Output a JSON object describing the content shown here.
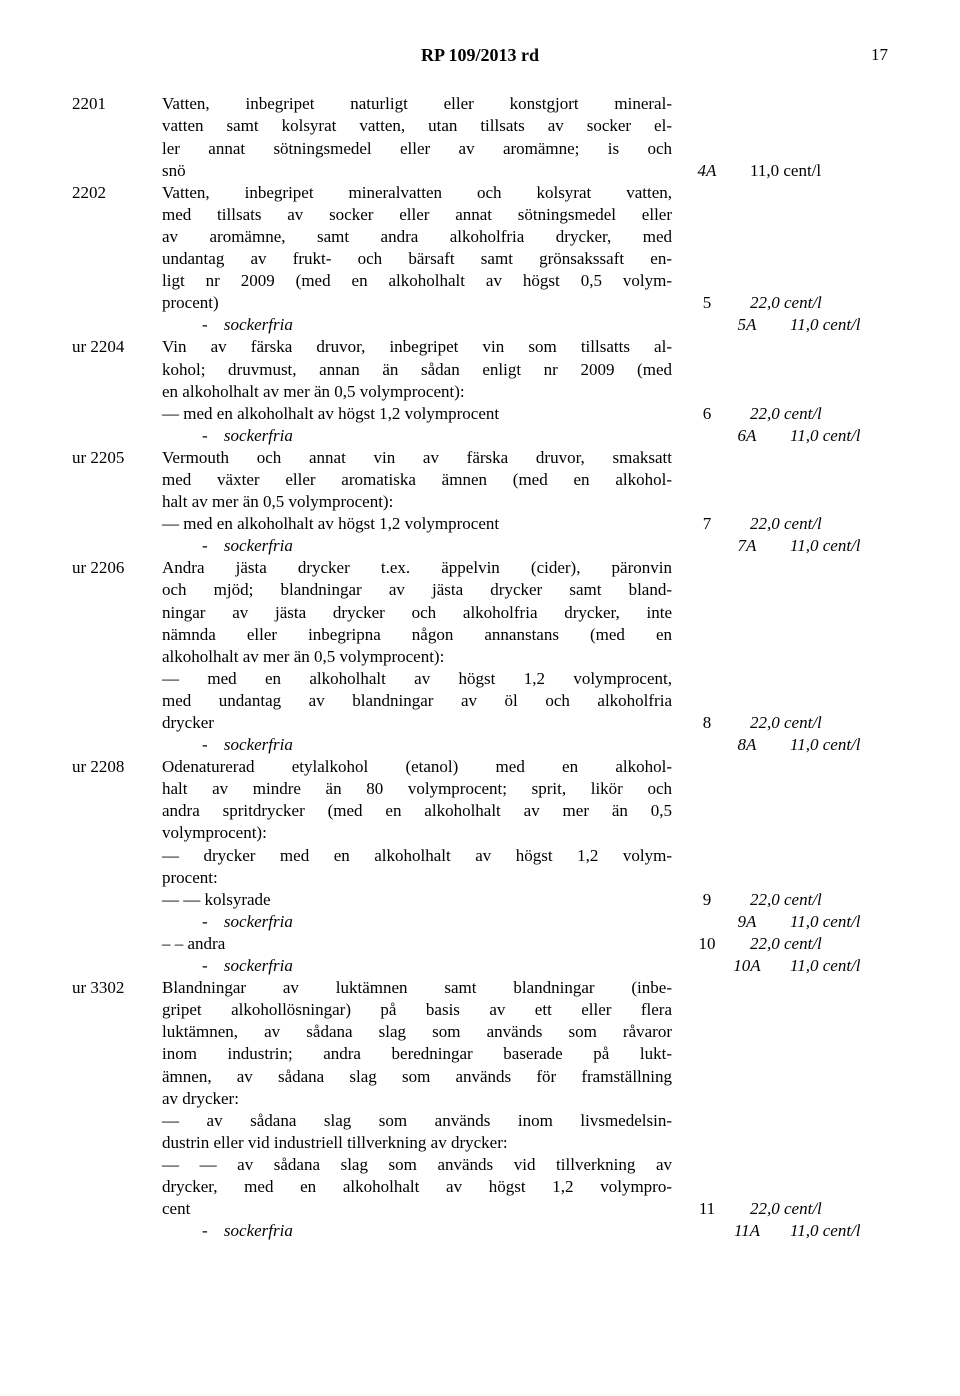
{
  "header": {
    "title": "RP 109/2013 rd",
    "page": "17"
  },
  "rows": [
    {
      "code": "2201",
      "desc": "Vatten, inbegripet naturligt eller konstgjort mineral-",
      "num": "",
      "rate": "",
      "italic": false,
      "cls": "justify-last"
    },
    {
      "code": "",
      "desc": "vatten samt kolsyrat vatten, utan tillsats av socker el-",
      "num": "",
      "rate": "",
      "italic": false,
      "cls": "justify-last"
    },
    {
      "code": "",
      "desc": "ler annat sötningsmedel eller av aromämne; is och",
      "num": "",
      "rate": "",
      "italic": false,
      "cls": "justify-last"
    },
    {
      "code": "",
      "desc": "snö",
      "num": "4A",
      "rate": "11,0 cent/l",
      "italic": false,
      "numItalic": true,
      "cls": ""
    },
    {
      "code": "2202",
      "desc": "Vatten, inbegripet mineralvatten och kolsyrat vatten,",
      "num": "",
      "rate": "",
      "italic": false,
      "cls": "justify-last"
    },
    {
      "code": "",
      "desc": "med tillsats av socker eller annat sötningsmedel eller",
      "num": "",
      "rate": "",
      "italic": false,
      "cls": "justify-last"
    },
    {
      "code": "",
      "desc": "av aromämne, samt andra alkoholfria drycker, med",
      "num": "",
      "rate": "",
      "italic": false,
      "cls": "justify-last"
    },
    {
      "code": "",
      "desc": "undantag av frukt- och bärsaft samt grönsakssaft en-",
      "num": "",
      "rate": "",
      "italic": false,
      "cls": "justify-last"
    },
    {
      "code": "",
      "desc": "ligt nr 2009 (med en alkoholhalt av högst 0,5 volym-",
      "num": "",
      "rate": "",
      "italic": false,
      "cls": "justify-last"
    },
    {
      "code": "",
      "desc": "procent)",
      "num": "5",
      "rate": "22,0 cent/l",
      "italic": false,
      "plainNum": true,
      "rateItalic": true,
      "cls": ""
    },
    {
      "code": "",
      "desc": "sockerfria",
      "num": "5A",
      "rate": "11,0 cent/l",
      "italic": true,
      "sockerfria": true,
      "cls": ""
    },
    {
      "code": "ur 2204",
      "desc": "Vin av färska druvor, inbegripet vin som tillsatts al-",
      "num": "",
      "rate": "",
      "italic": false,
      "cls": "justify-last"
    },
    {
      "code": "",
      "desc": "kohol; druvmust, annan än sådan enligt nr 2009 (med",
      "num": "",
      "rate": "",
      "italic": false,
      "cls": "justify-last"
    },
    {
      "code": "",
      "desc": "en alkoholhalt av mer än 0,5 volymprocent):",
      "num": "",
      "rate": "",
      "italic": false,
      "cls": ""
    },
    {
      "code": "",
      "desc": "— med en alkoholhalt av högst 1,2 volymprocent",
      "num": "6",
      "rate": "22,0 cent/l",
      "italic": false,
      "plainNum": true,
      "rateItalic": true,
      "cls": ""
    },
    {
      "code": "",
      "desc": "sockerfria",
      "num": "6A",
      "rate": "11,0 cent/l",
      "italic": true,
      "sockerfria": true,
      "cls": ""
    },
    {
      "code": "ur 2205",
      "desc": "Vermouth och annat vin av färska druvor, smaksatt",
      "num": "",
      "rate": "",
      "italic": false,
      "cls": "justify-last"
    },
    {
      "code": "",
      "desc": "med växter eller aromatiska ämnen (med en alkohol-",
      "num": "",
      "rate": "",
      "italic": false,
      "cls": "justify-last"
    },
    {
      "code": "",
      "desc": "halt av mer än 0,5 volymprocent):",
      "num": "",
      "rate": "",
      "italic": false,
      "cls": ""
    },
    {
      "code": "",
      "desc": "— med en alkoholhalt av högst 1,2 volymprocent",
      "num": "7",
      "rate": "22,0 cent/l",
      "italic": false,
      "plainNum": true,
      "rateItalic": true,
      "cls": ""
    },
    {
      "code": "",
      "desc": "sockerfria",
      "num": "7A",
      "rate": "11,0 cent/l",
      "italic": true,
      "sockerfria": true,
      "cls": ""
    },
    {
      "code": "ur 2206",
      "desc": "Andra jästa drycker t.ex. äppelvin (cider), päronvin",
      "num": "",
      "rate": "",
      "italic": false,
      "cls": "justify-last"
    },
    {
      "code": "",
      "desc": "och mjöd; blandningar av jästa drycker samt bland-",
      "num": "",
      "rate": "",
      "italic": false,
      "cls": "justify-last"
    },
    {
      "code": "",
      "desc": "ningar av jästa drycker och alkoholfria drycker, inte",
      "num": "",
      "rate": "",
      "italic": false,
      "cls": "justify-last"
    },
    {
      "code": "",
      "desc": "nämnda eller inbegripna någon annanstans (med en",
      "num": "",
      "rate": "",
      "italic": false,
      "cls": "justify-last"
    },
    {
      "code": "",
      "desc": "alkoholhalt av mer än 0,5 volymprocent):",
      "num": "",
      "rate": "",
      "italic": false,
      "cls": ""
    },
    {
      "code": "",
      "desc": "— med en alkoholhalt av högst 1,2 volymprocent,",
      "num": "",
      "rate": "",
      "italic": false,
      "cls": "justify-last"
    },
    {
      "code": "",
      "desc": "med undantag av blandningar av öl och alkoholfria",
      "num": "",
      "rate": "",
      "italic": false,
      "cls": "justify-last"
    },
    {
      "code": "",
      "desc": "drycker",
      "num": "8",
      "rate": "22,0 cent/l",
      "italic": false,
      "plainNum": true,
      "rateItalic": true,
      "cls": ""
    },
    {
      "code": "",
      "desc": "sockerfria",
      "num": "8A",
      "rate": "11,0 cent/l",
      "italic": true,
      "sockerfria": true,
      "cls": ""
    },
    {
      "code": "ur 2208",
      "desc": "Odenaturerad etylalkohol (etanol) med en alkohol-",
      "num": "",
      "rate": "",
      "italic": false,
      "cls": "justify-last"
    },
    {
      "code": "",
      "desc": "halt av mindre än 80 volymprocent; sprit, likör och",
      "num": "",
      "rate": "",
      "italic": false,
      "cls": "justify-last"
    },
    {
      "code": "",
      "desc": "andra spritdrycker (med en alkoholhalt av mer än 0,5",
      "num": "",
      "rate": "",
      "italic": false,
      "cls": "justify-last"
    },
    {
      "code": "",
      "desc": "volymprocent):",
      "num": "",
      "rate": "",
      "italic": false,
      "cls": ""
    },
    {
      "code": "",
      "desc": "— drycker med en alkoholhalt av högst 1,2 volym-",
      "num": "",
      "rate": "",
      "italic": false,
      "cls": "justify-last"
    },
    {
      "code": "",
      "desc": "procent:",
      "num": "",
      "rate": "",
      "italic": false,
      "cls": ""
    },
    {
      "code": "",
      "desc": "— — kolsyrade",
      "num": "9",
      "rate": "22,0 cent/l",
      "italic": false,
      "plainNum": true,
      "rateItalic": true,
      "cls": ""
    },
    {
      "code": "",
      "desc": "sockerfria",
      "num": "9A",
      "rate": "11,0 cent/l",
      "italic": true,
      "sockerfria": true,
      "cls": ""
    },
    {
      "code": "",
      "desc": "– – andra",
      "num": "10",
      "rate": "22,0 cent/l",
      "italic": false,
      "plainNum": true,
      "rateItalic": true,
      "cls": ""
    },
    {
      "code": "",
      "desc": "sockerfria",
      "num": "10A",
      "rate": "11,0 cent/l",
      "italic": true,
      "sockerfria": true,
      "cls": ""
    },
    {
      "code": "ur 3302",
      "desc": "Blandningar av luktämnen samt blandningar (inbe-",
      "num": "",
      "rate": "",
      "italic": false,
      "cls": "justify-last"
    },
    {
      "code": "",
      "desc": "gripet alkohollösningar) på basis av ett eller flera",
      "num": "",
      "rate": "",
      "italic": false,
      "cls": "justify-last"
    },
    {
      "code": "",
      "desc": "luktämnen, av sådana slag som används som råvaror",
      "num": "",
      "rate": "",
      "italic": false,
      "cls": "justify-last"
    },
    {
      "code": "",
      "desc": "inom industrin; andra beredningar baserade på lukt-",
      "num": "",
      "rate": "",
      "italic": false,
      "cls": "justify-last"
    },
    {
      "code": "",
      "desc": "ämnen, av sådana slag som används för framställning",
      "num": "",
      "rate": "",
      "italic": false,
      "cls": "justify-last"
    },
    {
      "code": "",
      "desc": "av drycker:",
      "num": "",
      "rate": "",
      "italic": false,
      "cls": ""
    },
    {
      "code": "",
      "desc": "— av sådana slag som används inom livsmedelsin-",
      "num": "",
      "rate": "",
      "italic": false,
      "cls": "justify-last"
    },
    {
      "code": "",
      "desc": "dustrin eller vid industriell tillverkning av drycker:",
      "num": "",
      "rate": "",
      "italic": false,
      "cls": ""
    },
    {
      "code": "",
      "desc": "— — av sådana slag som används vid tillverkning av",
      "num": "",
      "rate": "",
      "italic": false,
      "cls": "justify-last"
    },
    {
      "code": "",
      "desc": "drycker, med en alkoholhalt av högst 1,2 volympro-",
      "num": "",
      "rate": "",
      "italic": false,
      "cls": "justify-last"
    },
    {
      "code": "",
      "desc": "cent",
      "num": "11",
      "rate": "22,0 cent/l",
      "italic": false,
      "plainNum": true,
      "rateItalic": true,
      "cls": ""
    },
    {
      "code": "",
      "desc": "sockerfria",
      "num": "11A",
      "rate": "11,0 cent/l",
      "italic": true,
      "sockerfria": true,
      "cls": ""
    }
  ]
}
